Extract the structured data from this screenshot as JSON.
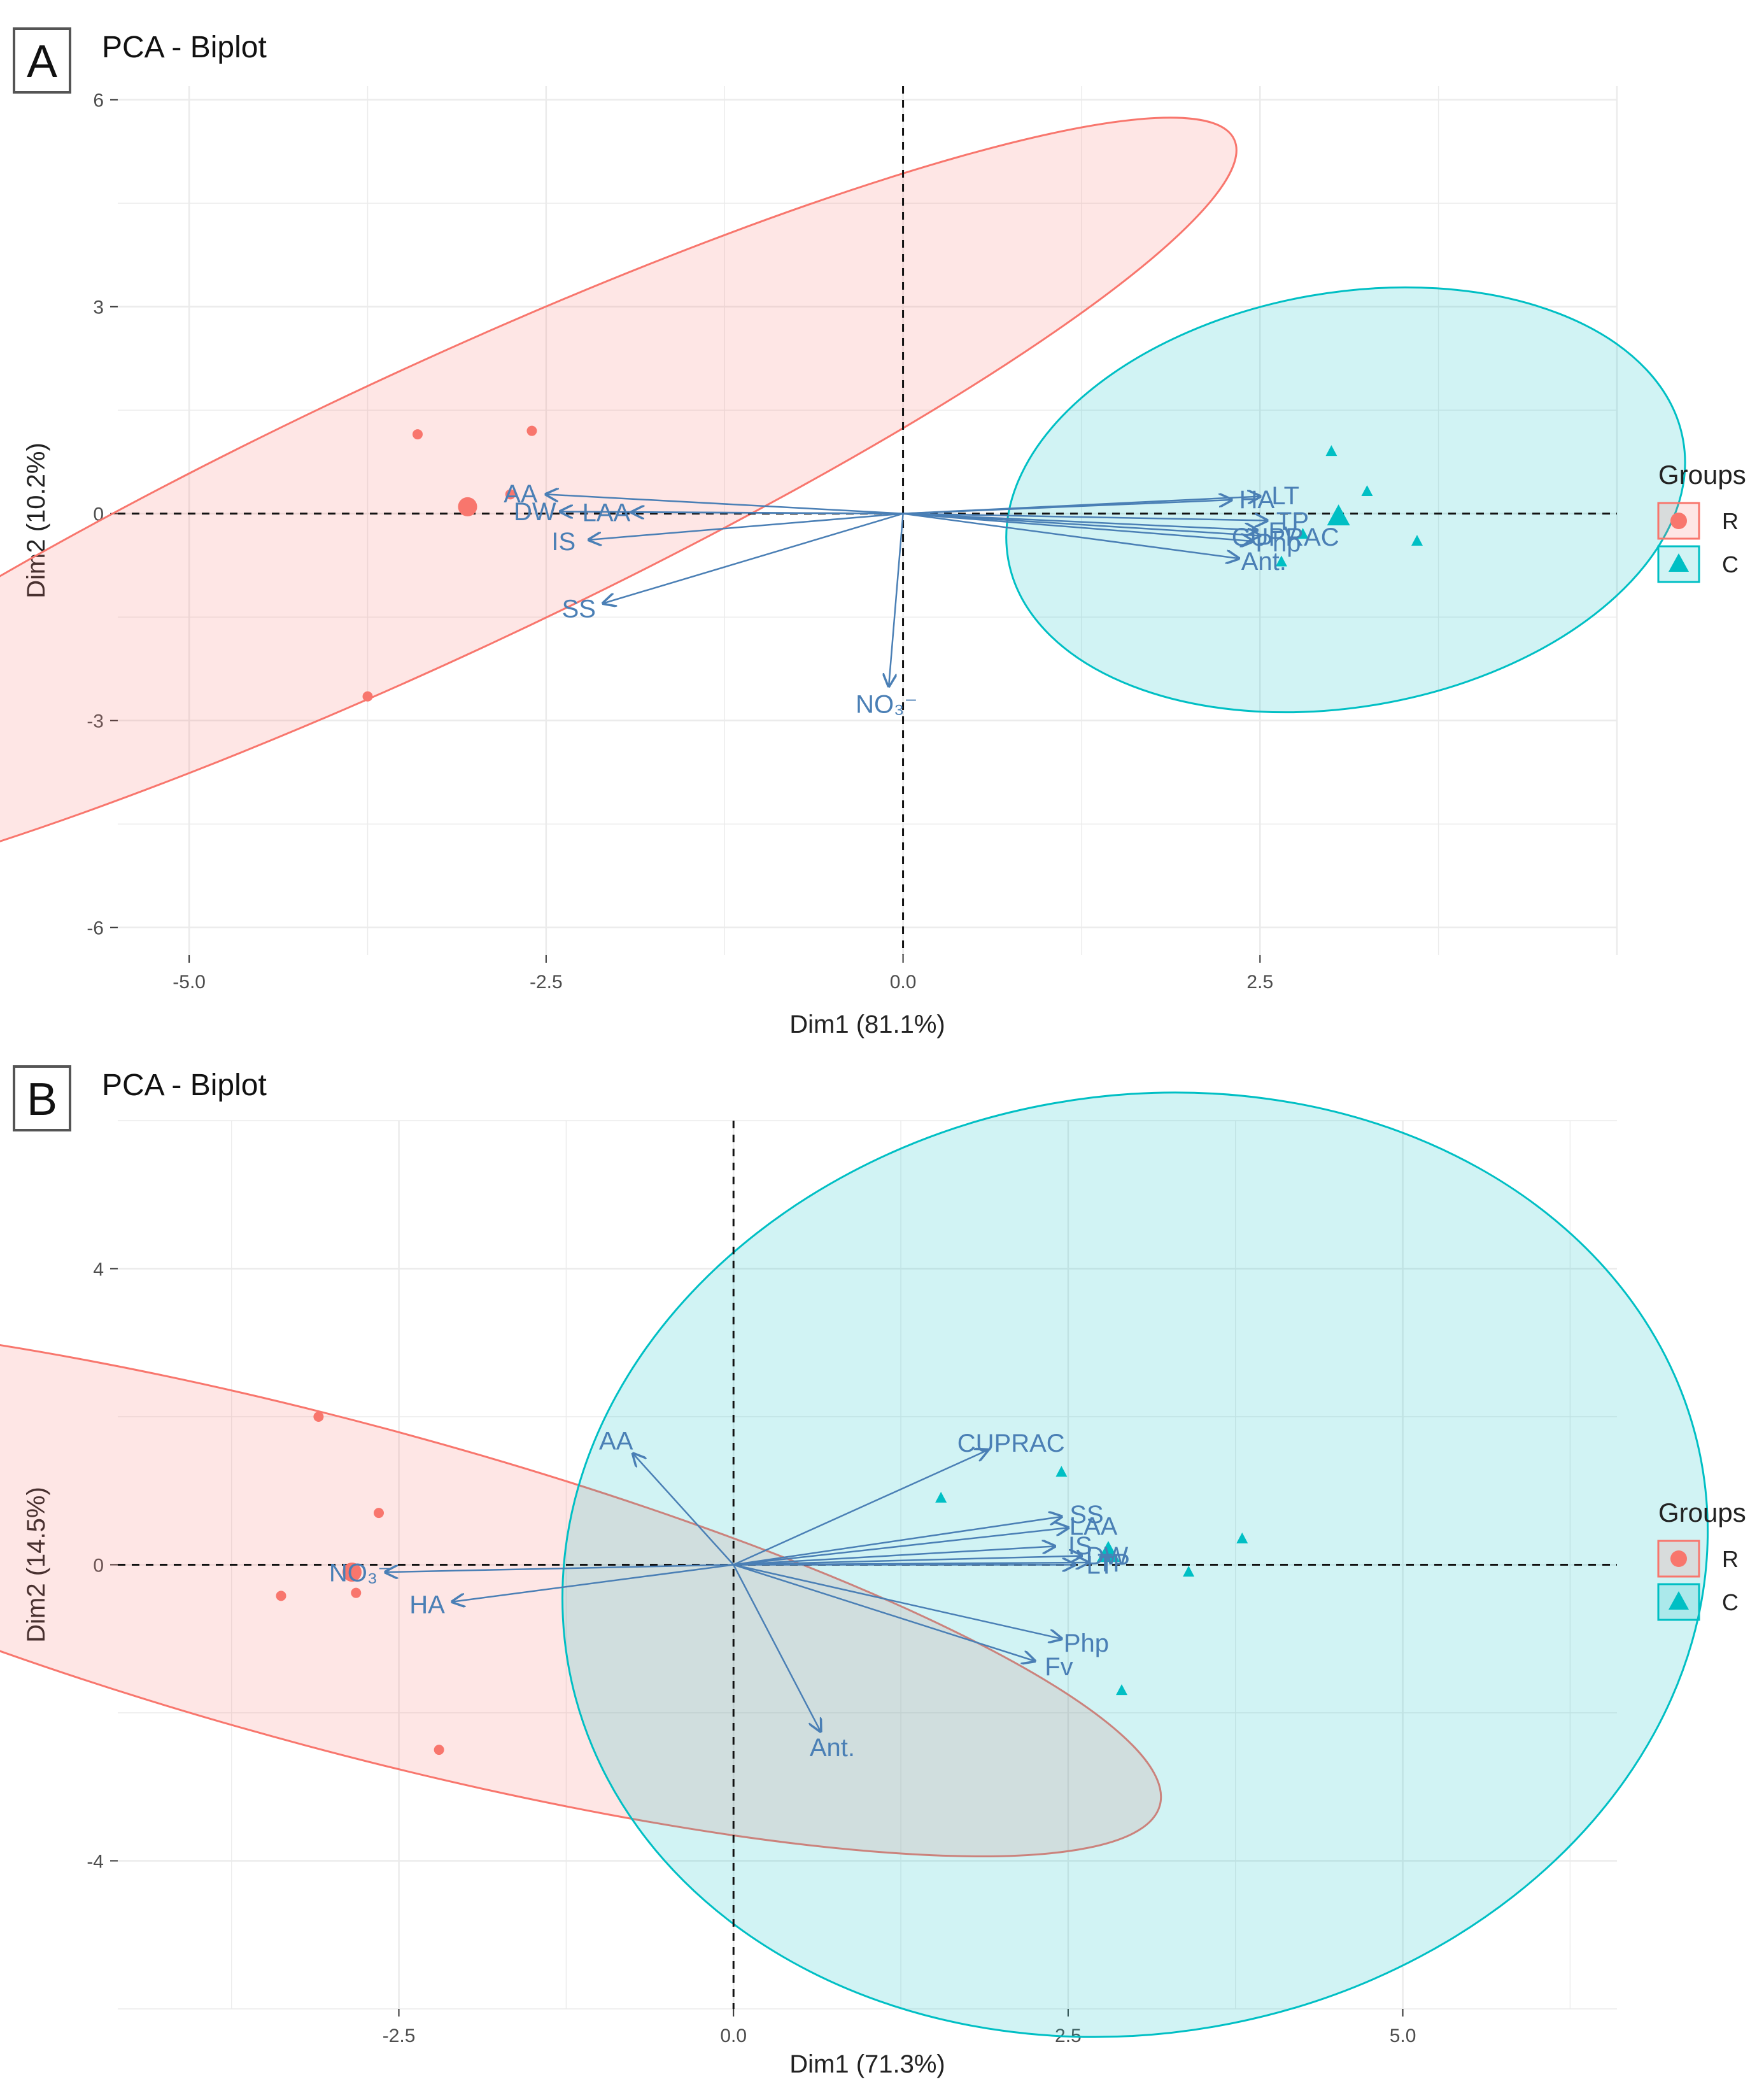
{
  "chart_data": [
    {
      "panel": "A",
      "type": "scatter",
      "title": "PCA - Biplot",
      "xlabel": "Dim1 (81.1%)",
      "ylabel": "Dim2 (10.2%)",
      "xlim": [
        -5.5,
        5.0
      ],
      "ylim": [
        -6.4,
        6.2
      ],
      "xticks": [
        -5.0,
        -2.5,
        0.0,
        2.5
      ],
      "xtick_labels": [
        "-5.0",
        "-2.5",
        "0.0",
        "2.5"
      ],
      "yticks": [
        -6,
        -3,
        0,
        3,
        6
      ],
      "ytick_labels": [
        "-6",
        "-3",
        "0",
        "3",
        "6"
      ],
      "grid": true,
      "legend": {
        "title": "Groups",
        "position": "right",
        "entries": [
          {
            "label": "R",
            "color": "#f8766d",
            "shape": "circle"
          },
          {
            "label": "C",
            "color": "#00bfc4",
            "shape": "triangle"
          }
        ]
      },
      "series": [
        {
          "name": "R",
          "color": "#f8766d",
          "shape": "circle",
          "points": [
            [
              -3.4,
              1.15
            ],
            [
              -2.6,
              1.2
            ],
            [
              -2.75,
              0.28
            ],
            [
              -3.75,
              -2.65
            ],
            [
              -3.05,
              0.1
            ]
          ],
          "centroid": [
            -3.05,
            0.1
          ],
          "ellipse": {
            "center": [
              -3.3,
              0.0
            ],
            "rx": 1.0,
            "ry": 6.2,
            "angle_deg": 65
          }
        },
        {
          "name": "C",
          "color": "#00bfc4",
          "shape": "triangle",
          "points": [
            [
              3.0,
              0.9
            ],
            [
              3.25,
              0.32
            ],
            [
              2.8,
              -0.3
            ],
            [
              2.65,
              -0.7
            ],
            [
              3.6,
              -0.4
            ],
            [
              3.05,
              -0.05
            ]
          ],
          "centroid": [
            3.05,
            -0.05
          ],
          "ellipse": {
            "center": [
              3.1,
              0.2
            ],
            "rx": 1.45,
            "ry": 2.4,
            "angle_deg": 80
          }
        }
      ],
      "loadings": [
        {
          "name": "AA",
          "label": "AA",
          "x": -2.5,
          "y": 0.28
        },
        {
          "name": "LAA",
          "label": "LAA",
          "x": -1.9,
          "y": 0.02
        },
        {
          "name": "DW",
          "label": "DW",
          "x": -2.4,
          "y": 0.03
        },
        {
          "name": "IS",
          "label": "IS",
          "x": -2.2,
          "y": -0.38
        },
        {
          "name": "SS",
          "label": "SS",
          "x": -2.1,
          "y": -1.3
        },
        {
          "name": "NO3",
          "label": "NO₃⁻",
          "x": -0.1,
          "y": -2.5
        },
        {
          "name": "LT",
          "label": "LT",
          "x": 2.5,
          "y": 0.25
        },
        {
          "name": "HA",
          "label": "HA",
          "x": 2.3,
          "y": 0.2
        },
        {
          "name": "TP",
          "label": "TP",
          "x": 2.55,
          "y": -0.1
        },
        {
          "name": "CUPRAC",
          "label": "CUPRAC",
          "x": 2.5,
          "y": -0.32
        },
        {
          "name": "Fv",
          "label": "Fv",
          "x": 2.48,
          "y": -0.24
        },
        {
          "name": "Ant",
          "label": "Ant.",
          "x": 2.35,
          "y": -0.65
        },
        {
          "name": "Php",
          "label": "Php",
          "x": 2.45,
          "y": -0.4
        }
      ]
    },
    {
      "panel": "B",
      "type": "scatter",
      "title": "PCA - Biplot",
      "xlabel": "Dim1 (71.3%)",
      "ylabel": "Dim2 (14.5%)",
      "xlim": [
        -4.6,
        6.6
      ],
      "ylim": [
        -6.0,
        6.0
      ],
      "xticks": [
        -2.5,
        0.0,
        2.5,
        5.0
      ],
      "xtick_labels": [
        "-2.5",
        "0.0",
        "2.5",
        "5.0"
      ],
      "yticks": [
        -4,
        0,
        4
      ],
      "ytick_labels": [
        "-4",
        "0",
        "4"
      ],
      "grid": true,
      "legend": {
        "title": "Groups",
        "position": "right",
        "entries": [
          {
            "label": "R",
            "color": "#f8766d",
            "shape": "circle"
          },
          {
            "label": "C",
            "color": "#00bfc4",
            "shape": "triangle"
          }
        ]
      },
      "series": [
        {
          "name": "R",
          "color": "#f8766d",
          "shape": "circle",
          "points": [
            [
              -3.1,
              2.0
            ],
            [
              -2.65,
              0.7
            ],
            [
              -2.82,
              -0.38
            ],
            [
              -3.38,
              -0.42
            ],
            [
              -2.2,
              -2.5
            ],
            [
              -2.85,
              -0.1
            ]
          ],
          "centroid": [
            -2.85,
            -0.1
          ],
          "ellipse": {
            "center": [
              -2.9,
              -0.3
            ],
            "rx": 1.22,
            "ry": 6.3,
            "angle_deg": 105
          }
        },
        {
          "name": "C",
          "color": "#00bfc4",
          "shape": "triangle",
          "points": [
            [
              1.55,
              0.9
            ],
            [
              2.45,
              1.25
            ],
            [
              3.4,
              -0.1
            ],
            [
              3.8,
              0.35
            ],
            [
              2.9,
              -1.7
            ],
            [
              2.8,
              0.15
            ]
          ],
          "centroid": [
            2.8,
            0.15
          ],
          "ellipse": {
            "center": [
              3.0,
              0.0
            ],
            "rx": 4.3,
            "ry": 3.5,
            "angle_deg": 170
          }
        }
      ],
      "loadings": [
        {
          "name": "AA",
          "label": "AA",
          "x": -0.75,
          "y": 1.5
        },
        {
          "name": "CUPRAC",
          "label": "CUPRAC",
          "x": 1.9,
          "y": 1.55
        },
        {
          "name": "SS",
          "label": "SS",
          "x": 2.45,
          "y": 0.65
        },
        {
          "name": "LAA",
          "label": "LAA",
          "x": 2.5,
          "y": 0.5
        },
        {
          "name": "IS",
          "label": "IS",
          "x": 2.4,
          "y": 0.25
        },
        {
          "name": "DW",
          "label": "DW",
          "x": 2.6,
          "y": 0.12
        },
        {
          "name": "LT",
          "label": "LT",
          "x": 2.55,
          "y": 0.0
        },
        {
          "name": "TP",
          "label": "TP",
          "x": 2.65,
          "y": 0.03
        },
        {
          "name": "Php",
          "label": "Php",
          "x": 2.45,
          "y": -1.0
        },
        {
          "name": "Fv",
          "label": "Fv",
          "x": 2.25,
          "y": -1.3
        },
        {
          "name": "Ant",
          "label": "Ant.",
          "x": 0.65,
          "y": -2.25
        },
        {
          "name": "NO3",
          "label": "NO₃⁻",
          "x": -2.6,
          "y": -0.1
        },
        {
          "name": "HA",
          "label": "HA",
          "x": -2.1,
          "y": -0.5
        }
      ]
    }
  ],
  "colors": {
    "R": "#f8766d",
    "C": "#00bfc4",
    "arrow": "#4a7fb5",
    "grid": "#ebebeb"
  }
}
